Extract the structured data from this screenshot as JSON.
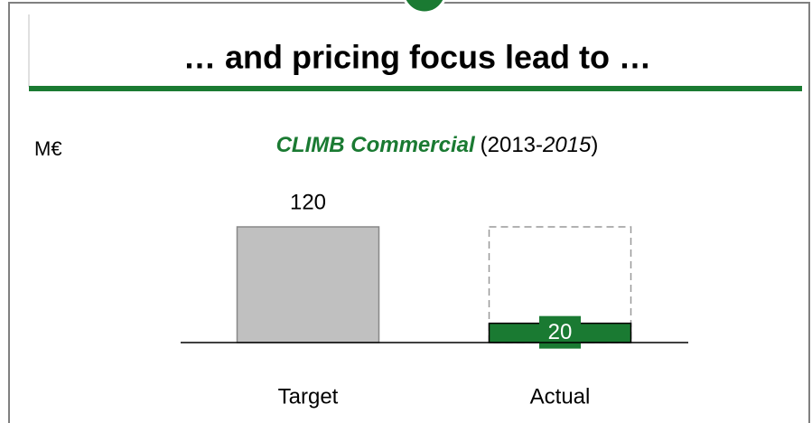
{
  "chart_data": {
    "type": "bar",
    "page_title": "… and pricing focus lead to …",
    "unit": "M€",
    "title_parts": [
      "CLIMB Commercial",
      "(2013-",
      "2015",
      ")"
    ],
    "categories": [
      "Target",
      "Actual"
    ],
    "values": [
      120,
      20
    ],
    "colors": [
      "#c0c0c0",
      "#1a7a32"
    ]
  }
}
